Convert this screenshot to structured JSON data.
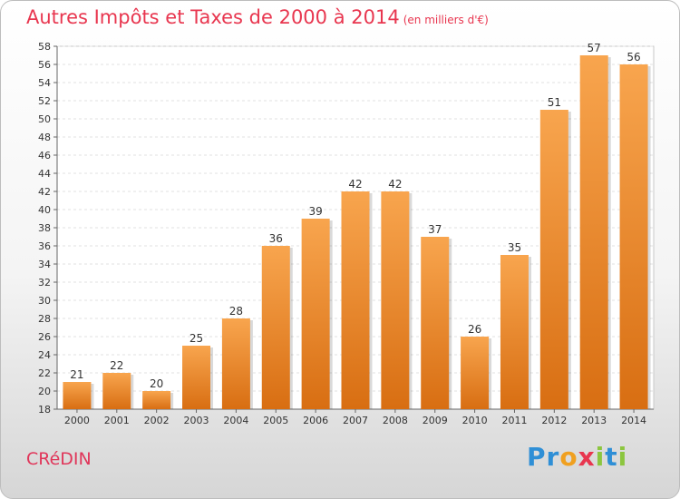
{
  "header": {
    "title": "Autres Impôts et Taxes de 2000 à 2014",
    "unit": "(en milliers d'€)"
  },
  "footer": {
    "city": "CRéDIN",
    "logo_letters": [
      "P",
      "r",
      "o",
      "x",
      "i",
      "t",
      "i"
    ],
    "logo_colors": [
      "#2f8fd6",
      "#2f8fd6",
      "#f0a020",
      "#e8364f",
      "#8cc63f",
      "#2f8fd6",
      "#8cc63f"
    ]
  },
  "colors": {
    "bar_top": "#f8a54e",
    "bar_bottom": "#d86e12",
    "title": "#e8364f"
  },
  "chart_data": {
    "type": "bar",
    "title": "Autres Impôts et Taxes de 2000 à 2014",
    "subtitle": "(en milliers d'€)",
    "categories": [
      "2000",
      "2001",
      "2002",
      "2003",
      "2004",
      "2005",
      "2006",
      "2007",
      "2008",
      "2009",
      "2010",
      "2011",
      "2012",
      "2013",
      "2014"
    ],
    "values": [
      21,
      22,
      20,
      25,
      28,
      36,
      39,
      42,
      42,
      37,
      26,
      35,
      51,
      57,
      56
    ],
    "ylim": [
      18,
      58
    ],
    "ytick_step": 2,
    "grid": true,
    "xlabel": "",
    "ylabel": ""
  }
}
